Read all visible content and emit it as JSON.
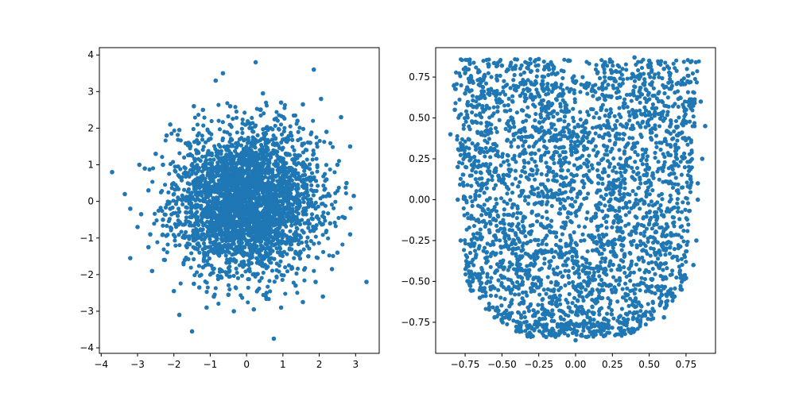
{
  "chart_data": [
    {
      "type": "scatter",
      "title": "",
      "xlabel": "",
      "ylabel": "",
      "xlim": [
        -4.05,
        3.65
      ],
      "ylim": [
        -4.15,
        4.2
      ],
      "grid": false,
      "legend": "none",
      "marker_color": "#1f77b4",
      "xticks": [
        -4,
        -3,
        -2,
        -1,
        0,
        1,
        2,
        3
      ],
      "xtick_labels": [
        "−4",
        "−3",
        "−2",
        "−1",
        "0",
        "1",
        "2",
        "3"
      ],
      "yticks": [
        -4,
        -3,
        -2,
        -1,
        0,
        1,
        2,
        3,
        4
      ],
      "ytick_labels": [
        "−4",
        "−3",
        "−2",
        "−1",
        "0",
        "1",
        "2",
        "3",
        "4"
      ],
      "series": [
        {
          "values": [
            [
              -3.7,
              0.8
            ],
            [
              -3.35,
              0.2
            ],
            [
              -3.2,
              -1.55
            ],
            [
              -3.2,
              -0.2
            ],
            [
              -3.0,
              -0.7
            ],
            [
              -2.7,
              -1.25
            ],
            [
              -2.6,
              -1.9
            ],
            [
              -2.8,
              0.9
            ],
            [
              -2.5,
              1.3
            ],
            [
              -2.3,
              -0.5
            ],
            [
              -2.0,
              -2.45
            ],
            [
              -1.85,
              -3.1
            ],
            [
              -1.5,
              -3.55
            ],
            [
              -1.3,
              -2.35
            ],
            [
              -1.1,
              -2.9
            ],
            [
              -0.9,
              -2.6
            ],
            [
              -0.35,
              -3.0
            ],
            [
              0.2,
              -2.95
            ],
            [
              0.75,
              -3.75
            ],
            [
              0.95,
              -2.9
            ],
            [
              1.55,
              -2.75
            ],
            [
              2.1,
              -2.6
            ],
            [
              2.5,
              -1.4
            ],
            [
              2.85,
              -0.9
            ],
            [
              3.3,
              -2.2
            ],
            [
              2.75,
              0.5
            ],
            [
              2.85,
              1.5
            ],
            [
              2.6,
              2.3
            ],
            [
              2.05,
              2.8
            ],
            [
              1.85,
              3.6
            ],
            [
              1.55,
              2.65
            ],
            [
              0.45,
              2.95
            ],
            [
              0.25,
              3.8
            ],
            [
              -0.45,
              2.6
            ],
            [
              -0.65,
              3.5
            ],
            [
              -0.85,
              3.3
            ],
            [
              -1.45,
              2.6
            ],
            [
              -1.85,
              1.95
            ],
            [
              -2.2,
              1.8
            ],
            [
              -2.95,
              1.0
            ],
            [
              -2.1,
              2.1
            ],
            [
              -1.2,
              2.5
            ],
            [
              0.95,
              2.7
            ],
            [
              1.4,
              2.2
            ],
            [
              2.2,
              1.9
            ],
            [
              2.5,
              1.0
            ],
            [
              2.95,
              0.15
            ],
            [
              2.7,
              -0.45
            ],
            [
              2.35,
              -1.85
            ],
            [
              1.9,
              -2.2
            ],
            [
              1.35,
              -2.3
            ],
            [
              0.55,
              -2.5
            ],
            [
              -0.5,
              -2.55
            ],
            [
              -1.45,
              -2.25
            ],
            [
              -2.25,
              -1.6
            ],
            [
              -2.65,
              -0.9
            ],
            [
              -2.9,
              -0.35
            ],
            [
              -2.7,
              0.3
            ],
            [
              -2.3,
              1.0
            ],
            [
              -1.6,
              1.6
            ],
            [
              1.75,
              1.6
            ],
            [
              2.2,
              0.6
            ],
            [
              2.3,
              -0.6
            ],
            [
              1.7,
              -1.5
            ],
            [
              -1.7,
              -1.6
            ],
            [
              -2.1,
              -0.2
            ]
          ]
        }
      ]
    },
    {
      "type": "scatter",
      "title": "",
      "xlabel": "",
      "ylabel": "",
      "xlim": [
        -0.95,
        0.95
      ],
      "ylim": [
        -0.94,
        0.93
      ],
      "grid": false,
      "legend": "none",
      "marker_color": "#1f77b4",
      "xticks": [
        -0.75,
        -0.5,
        -0.25,
        0,
        0.25,
        0.5,
        0.75
      ],
      "xtick_labels": [
        "−0.75",
        "−0.50",
        "−0.25",
        "0.00",
        "0.25",
        "0.50",
        "0.75"
      ],
      "yticks": [
        -0.75,
        -0.5,
        -0.25,
        0,
        0.25,
        0.5,
        0.75
      ],
      "ytick_labels": [
        "−0.75",
        "−0.50",
        "−0.25",
        "0.00",
        "0.25",
        "0.50",
        "0.75"
      ],
      "series": [
        {
          "values": [
            [
              -0.85,
              0.4
            ],
            [
              -0.82,
              0.55
            ],
            [
              -0.72,
              0.72
            ],
            [
              -0.5,
              0.82
            ],
            [
              -0.25,
              0.86
            ],
            [
              -0.05,
              0.85
            ],
            [
              0.2,
              0.84
            ],
            [
              0.4,
              0.87
            ],
            [
              0.6,
              0.8
            ],
            [
              0.78,
              0.72
            ],
            [
              0.85,
              0.6
            ],
            [
              0.88,
              0.45
            ],
            [
              0.86,
              0.25
            ],
            [
              0.83,
              0.0
            ],
            [
              0.82,
              -0.25
            ],
            [
              0.8,
              -0.4
            ],
            [
              0.72,
              -0.55
            ],
            [
              0.6,
              -0.72
            ],
            [
              0.4,
              -0.8
            ],
            [
              0.2,
              -0.83
            ],
            [
              0.0,
              -0.86
            ],
            [
              -0.2,
              -0.84
            ],
            [
              -0.4,
              -0.8
            ],
            [
              -0.55,
              -0.72
            ],
            [
              -0.65,
              -0.6
            ],
            [
              -0.72,
              -0.45
            ],
            [
              -0.78,
              -0.25
            ],
            [
              -0.8,
              0.0
            ],
            [
              -0.8,
              0.2
            ],
            [
              -0.15,
              0.8
            ],
            [
              0.15,
              0.78
            ],
            [
              0.5,
              0.85
            ],
            [
              0.75,
              0.55
            ],
            [
              0.83,
              0.1
            ],
            [
              0.75,
              -0.48
            ],
            [
              0.3,
              -0.75
            ],
            [
              -0.3,
              -0.78
            ],
            [
              -0.7,
              -0.5
            ],
            [
              -0.75,
              0.65
            ]
          ]
        }
      ]
    }
  ]
}
